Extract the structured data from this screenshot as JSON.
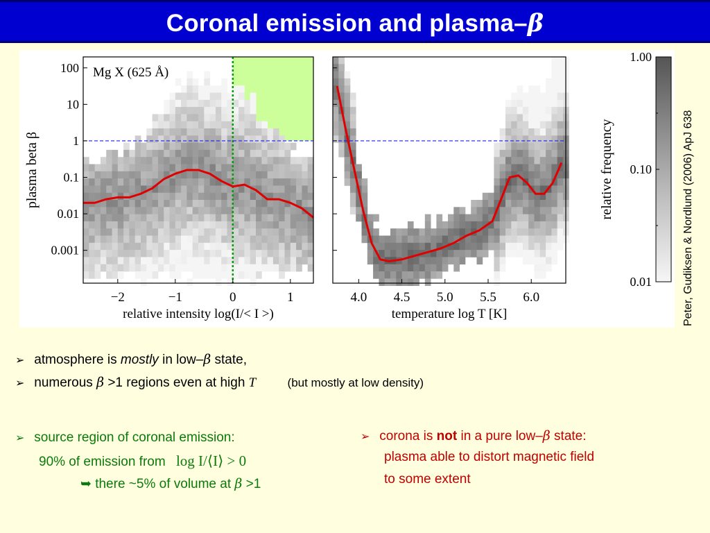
{
  "slide": {
    "title": "Coronal emission and plasma–",
    "title_symbol": "β",
    "citation": "Peter, Gudiksen & Nordlund (2006) ApJ 638"
  },
  "bullets": {
    "b1": {
      "pre": "atmosphere is ",
      "em": "mostly",
      "mid": " in low–",
      "sym": "β",
      "post": " state,"
    },
    "b2": {
      "pre": "numerous ",
      "sym": "β",
      "mid": " >1  regions even at high ",
      "T": "T",
      "note": "(but mostly at low density)"
    },
    "b3": {
      "line1": "source region of coronal emission:",
      "line2": "90% of emission from",
      "math2": "log I/⟨I⟩ > 0",
      "arrow": "➥",
      "line3": " there ~5% of volume at ",
      "sym": "β",
      "line3_post": " >1"
    },
    "b4": {
      "pre": "corona is ",
      "bold": "not",
      "mid": " in a pure low–",
      "sym": "β",
      "post": " state:",
      "line2": "plasma able to distort magnetic field",
      "line3": "to some extent"
    },
    "marker": "➢"
  },
  "chart_data": [
    {
      "type": "heatmap",
      "panel": "left",
      "annotation": "Mg X (625 Å)",
      "ylabel": "plasma beta   β",
      "xlabel": "relative intensity   log(I/< I >)",
      "x_ticks": [
        "−2",
        "−1",
        "0",
        "1"
      ],
      "y_ticks": [
        "100",
        "10",
        "1",
        "0.1",
        "0.01",
        "0.001"
      ],
      "xlim": [
        -2.6,
        1.4
      ],
      "ylim_log10": [
        -3.9,
        2.3
      ],
      "reference_lines": {
        "vertical_x": 0,
        "horizontal_beta": 1
      },
      "highlight_region": {
        "x": [
          0,
          1.4
        ],
        "beta_log10": [
          0,
          2.3
        ],
        "color": "#ccff99"
      },
      "series": [
        {
          "x": [
            -2.6,
            -2.4,
            -2.2,
            -2.0,
            -1.8,
            -1.6,
            -1.4,
            -1.2,
            -1.0,
            -0.8,
            -0.6,
            -0.4,
            -0.2,
            0.0,
            0.2,
            0.4,
            0.6,
            0.8,
            1.0,
            1.2,
            1.4
          ],
          "log_beta": [
            -1.7,
            -1.7,
            -1.6,
            -1.55,
            -1.55,
            -1.45,
            -1.3,
            -1.05,
            -0.9,
            -0.8,
            -0.8,
            -0.9,
            -1.1,
            -1.25,
            -1.2,
            -1.35,
            -1.6,
            -1.6,
            -1.7,
            -1.85,
            -2.1
          ],
          "color": "#e00000"
        }
      ]
    },
    {
      "type": "heatmap",
      "panel": "middle",
      "xlabel": "temperature   log T [K]",
      "x_ticks": [
        "4.0",
        "4.5",
        "5.0",
        "5.5",
        "6.0"
      ],
      "xlim": [
        3.7,
        6.4
      ],
      "ylim_log10": [
        -3.9,
        2.3
      ],
      "reference_lines": {
        "horizontal_beta": 1
      },
      "series": [
        {
          "x": [
            3.75,
            3.85,
            3.95,
            4.05,
            4.15,
            4.25,
            4.35,
            4.5,
            4.65,
            4.8,
            4.95,
            5.1,
            5.25,
            5.4,
            5.55,
            5.65,
            5.75,
            5.85,
            5.95,
            6.05,
            6.15,
            6.25,
            6.35
          ],
          "log_beta": [
            1.5,
            0.3,
            -0.8,
            -1.9,
            -2.8,
            -3.25,
            -3.3,
            -3.25,
            -3.15,
            -3.05,
            -2.95,
            -2.8,
            -2.6,
            -2.45,
            -2.2,
            -1.6,
            -1.0,
            -0.95,
            -1.15,
            -1.45,
            -1.45,
            -1.15,
            -0.6
          ],
          "color": "#e00000"
        }
      ]
    },
    {
      "type": "colorbar",
      "label": "relative frequency",
      "ticks": [
        "1.00",
        "0.10",
        "0.01"
      ],
      "range": [
        0.01,
        1.0
      ]
    }
  ]
}
